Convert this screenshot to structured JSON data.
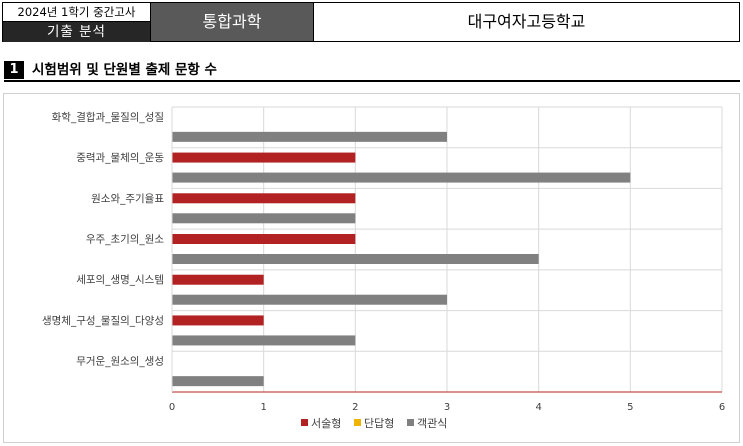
{
  "header": {
    "term": "2024년 1학기 중간고사",
    "exam_type": "기출 분석",
    "subject": "통합과학",
    "school": "대구여자고등학교"
  },
  "section": {
    "number": "1",
    "title": "시험범위 및 단원별 출제 문항 수"
  },
  "chart_data": {
    "type": "bar",
    "orientation": "horizontal",
    "categories": [
      "화학_결합과_물질의_성질",
      "중력과_물체의_운동",
      "원소와_주기율표",
      "우주_초기의_원소",
      "세포의_생명_시스템",
      "생명체_구성_물질의_다양성",
      "무거운_원소의_생성"
    ],
    "series": [
      {
        "name": "서술형",
        "color": "#b22222",
        "values": [
          0,
          2,
          2,
          2,
          1,
          1,
          0
        ]
      },
      {
        "name": "단답형",
        "color": "#f0b400",
        "values": [
          0,
          0,
          0,
          0,
          0,
          0,
          0
        ]
      },
      {
        "name": "객관식",
        "color": "#808080",
        "values": [
          3,
          5,
          2,
          4,
          3,
          2,
          1
        ]
      }
    ],
    "xlim": [
      0,
      6
    ],
    "x_ticks": [
      "0",
      "1",
      "2",
      "3",
      "4",
      "5",
      "6"
    ],
    "grid": true,
    "legend_position": "bottom"
  }
}
